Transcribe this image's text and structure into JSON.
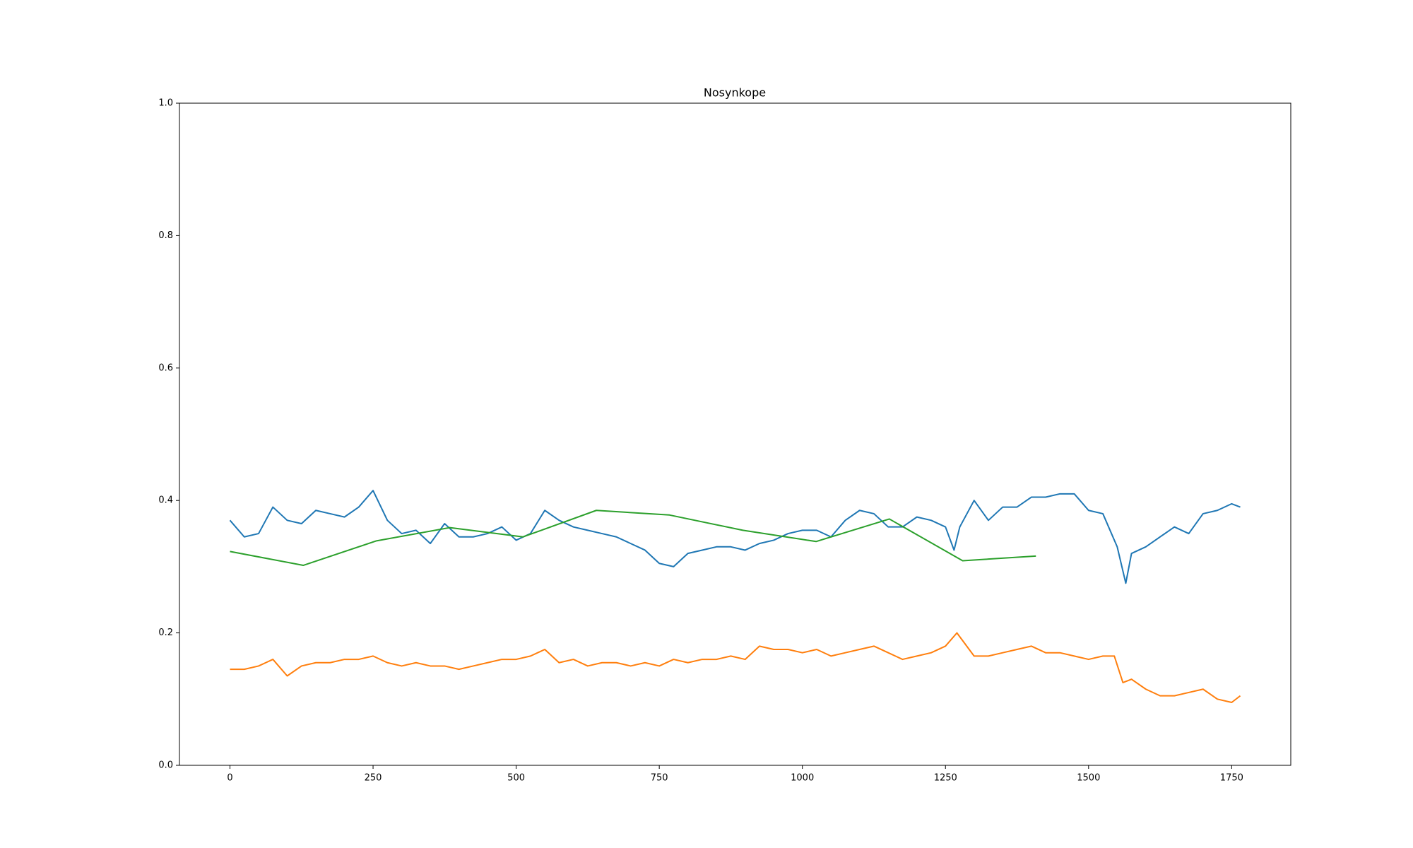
{
  "chart_data": {
    "type": "line",
    "title": "Nosynkope",
    "xlim": [
      -88.25,
      1853.25
    ],
    "xticks": [
      0,
      250,
      500,
      750,
      1000,
      1250,
      1500,
      1750
    ],
    "ylim": [
      0,
      1
    ],
    "yticks": [
      {
        "value": 0,
        "label": "0.0"
      },
      0.2,
      0.4,
      0.6,
      0.8,
      {
        "value": 1,
        "label": "1.0"
      }
    ],
    "grid": false,
    "series": [
      {
        "color": "#1f77b4",
        "x": [
          0,
          25,
          50,
          75,
          100,
          125,
          150,
          175,
          200,
          225,
          250,
          275,
          300,
          325,
          350,
          375,
          400,
          425,
          450,
          475,
          500,
          525,
          550,
          575,
          600,
          625,
          650,
          675,
          700,
          725,
          750,
          775,
          800,
          825,
          850,
          875,
          900,
          925,
          950,
          975,
          1000,
          1025,
          1050,
          1075,
          1100,
          1125,
          1150,
          1175,
          1200,
          1225,
          1250,
          1265,
          1275,
          1300,
          1325,
          1350,
          1375,
          1400,
          1425,
          1450,
          1475,
          1500,
          1525,
          1550,
          1565,
          1575,
          1600,
          1625,
          1650,
          1675,
          1700,
          1725,
          1750,
          1765
        ],
        "values": [
          0.37,
          0.345,
          0.35,
          0.39,
          0.37,
          0.365,
          0.385,
          0.38,
          0.375,
          0.39,
          0.415,
          0.37,
          0.35,
          0.355,
          0.335,
          0.365,
          0.345,
          0.345,
          0.35,
          0.36,
          0.34,
          0.35,
          0.385,
          0.37,
          0.36,
          0.355,
          0.35,
          0.345,
          0.335,
          0.325,
          0.305,
          0.3,
          0.32,
          0.325,
          0.33,
          0.33,
          0.325,
          0.335,
          0.34,
          0.35,
          0.355,
          0.355,
          0.345,
          0.37,
          0.385,
          0.38,
          0.36,
          0.36,
          0.375,
          0.37,
          0.36,
          0.325,
          0.36,
          0.4,
          0.37,
          0.39,
          0.39,
          0.405,
          0.405,
          0.41,
          0.41,
          0.385,
          0.38,
          0.33,
          0.275,
          0.32,
          0.33,
          0.345,
          0.36,
          0.35,
          0.38,
          0.385,
          0.395,
          0.39
        ]
      },
      {
        "color": "#ff7f0e",
        "x": [
          0,
          25,
          50,
          75,
          100,
          125,
          150,
          175,
          200,
          225,
          250,
          275,
          300,
          325,
          350,
          375,
          400,
          425,
          450,
          475,
          500,
          525,
          550,
          575,
          600,
          625,
          650,
          675,
          700,
          725,
          750,
          775,
          800,
          825,
          850,
          875,
          900,
          925,
          950,
          975,
          1000,
          1025,
          1050,
          1075,
          1100,
          1125,
          1150,
          1175,
          1200,
          1225,
          1250,
          1270,
          1300,
          1325,
          1350,
          1375,
          1400,
          1425,
          1450,
          1475,
          1500,
          1525,
          1545,
          1560,
          1575,
          1600,
          1625,
          1650,
          1675,
          1700,
          1725,
          1750,
          1765
        ],
        "values": [
          0.145,
          0.145,
          0.15,
          0.16,
          0.135,
          0.15,
          0.155,
          0.155,
          0.16,
          0.16,
          0.165,
          0.155,
          0.15,
          0.155,
          0.15,
          0.15,
          0.145,
          0.15,
          0.155,
          0.16,
          0.16,
          0.165,
          0.175,
          0.155,
          0.16,
          0.15,
          0.155,
          0.155,
          0.15,
          0.155,
          0.15,
          0.16,
          0.155,
          0.16,
          0.16,
          0.165,
          0.16,
          0.18,
          0.175,
          0.175,
          0.17,
          0.175,
          0.165,
          0.17,
          0.175,
          0.18,
          0.17,
          0.16,
          0.165,
          0.17,
          0.18,
          0.2,
          0.165,
          0.165,
          0.17,
          0.175,
          0.18,
          0.17,
          0.17,
          0.165,
          0.16,
          0.165,
          0.165,
          0.125,
          0.13,
          0.115,
          0.105,
          0.105,
          0.11,
          0.115,
          0.1,
          0.095,
          0.105
        ]
      },
      {
        "color": "#2ca02c",
        "x": [
          0,
          128,
          256,
          384,
          512,
          640,
          768,
          896,
          1024,
          1152,
          1280,
          1408
        ],
        "values": [
          0.323,
          0.302,
          0.339,
          0.359,
          0.345,
          0.385,
          0.378,
          0.355,
          0.338,
          0.372,
          0.309,
          0.316
        ]
      }
    ]
  }
}
